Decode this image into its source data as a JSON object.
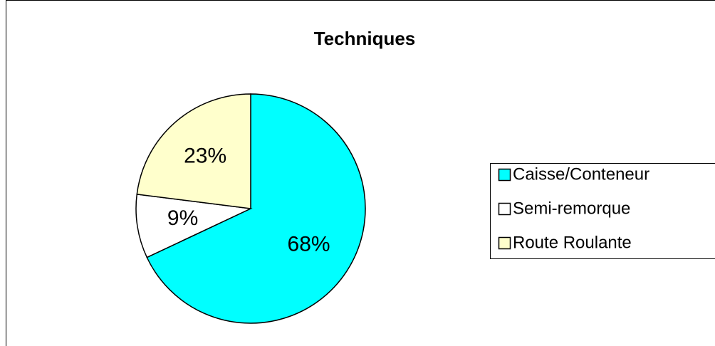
{
  "chart_data": {
    "type": "pie",
    "title": "Techniques",
    "categories": [
      "Caisse/Conteneur",
      "Semi-remorque",
      "Route Roulante"
    ],
    "values": [
      68,
      9,
      23
    ],
    "value_labels": [
      "68%",
      "9%",
      "23%"
    ],
    "colors": [
      "#00ffff",
      "#ffffff",
      "#ffffcc"
    ],
    "legend": "right"
  }
}
